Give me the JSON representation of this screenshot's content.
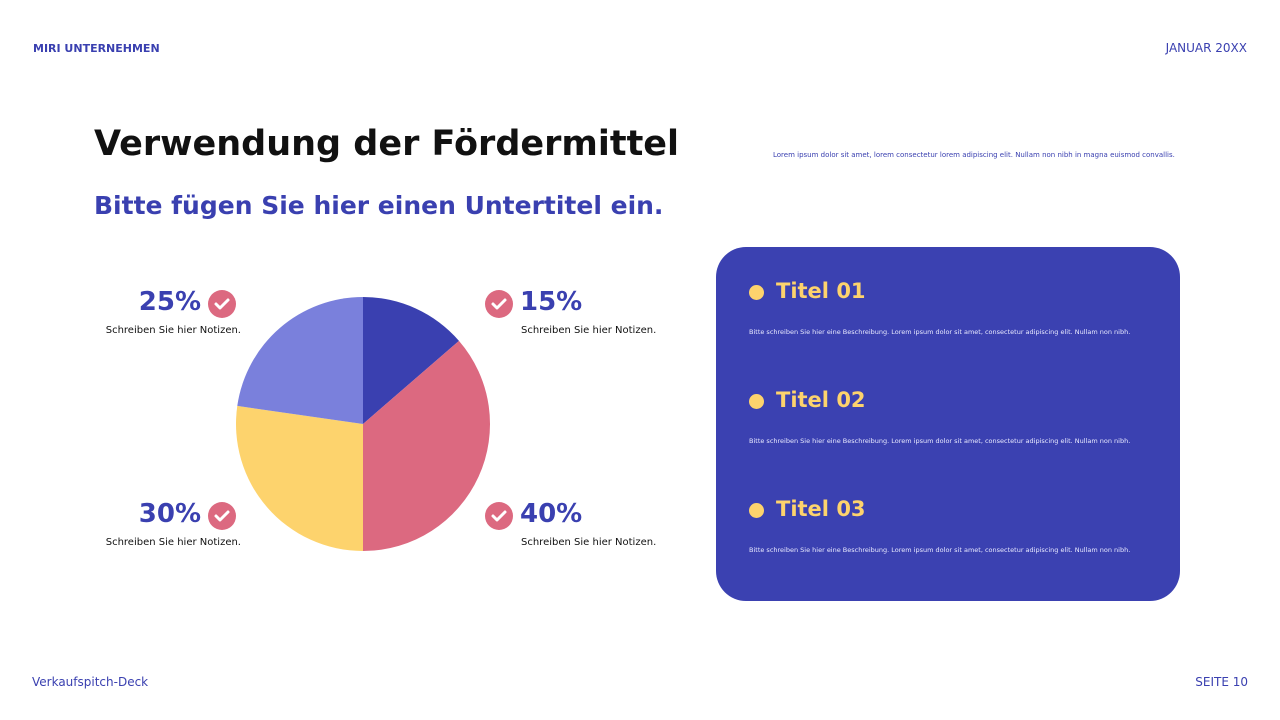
{
  "header": {
    "company": "MIRI UNTERNEHMEN",
    "date": "JANUAR 20XX"
  },
  "title": "Verwendung der Fördermittel",
  "subtitle": "Bitte fügen Sie hier einen Untertitel ein.",
  "description": "Lorem ipsum dolor sit amet, lorem consectetur lorem adipiscing elit. Nullam non nibh in magna euismod convallis.",
  "chart_data": {
    "type": "pie",
    "values": [
      15,
      40,
      30,
      25
    ],
    "value_labels": [
      "15%",
      "40%",
      "30%",
      "25%"
    ],
    "notes": [
      "Schreiben Sie hier Notizen.",
      "Schreiben Sie hier Notizen.",
      "Schreiben Sie hier Notizen.",
      "Schreiben Sie hier Notizen."
    ],
    "colors": [
      "#3a40b0",
      "#dc6980",
      "#fdd36d",
      "#7a80dc"
    ]
  },
  "cards": [
    {
      "title": "Titel 01",
      "text": "Bitte schreiben Sie hier eine Beschreibung. Lorem ipsum dolor sit amet, consectetur adipiscing elit. Nullam non nibh."
    },
    {
      "title": "Titel 02",
      "text": "Bitte schreiben Sie hier eine Beschreibung. Lorem ipsum dolor sit amet, consectetur adipiscing elit. Nullam non nibh."
    },
    {
      "title": "Titel 03",
      "text": "Bitte schreiben Sie hier eine Beschreibung. Lorem ipsum dolor sit amet, consectetur adipiscing elit. Nullam non nibh."
    }
  ],
  "footer": {
    "deck": "Verkaufspitch-Deck",
    "page": "SEITE 10"
  }
}
